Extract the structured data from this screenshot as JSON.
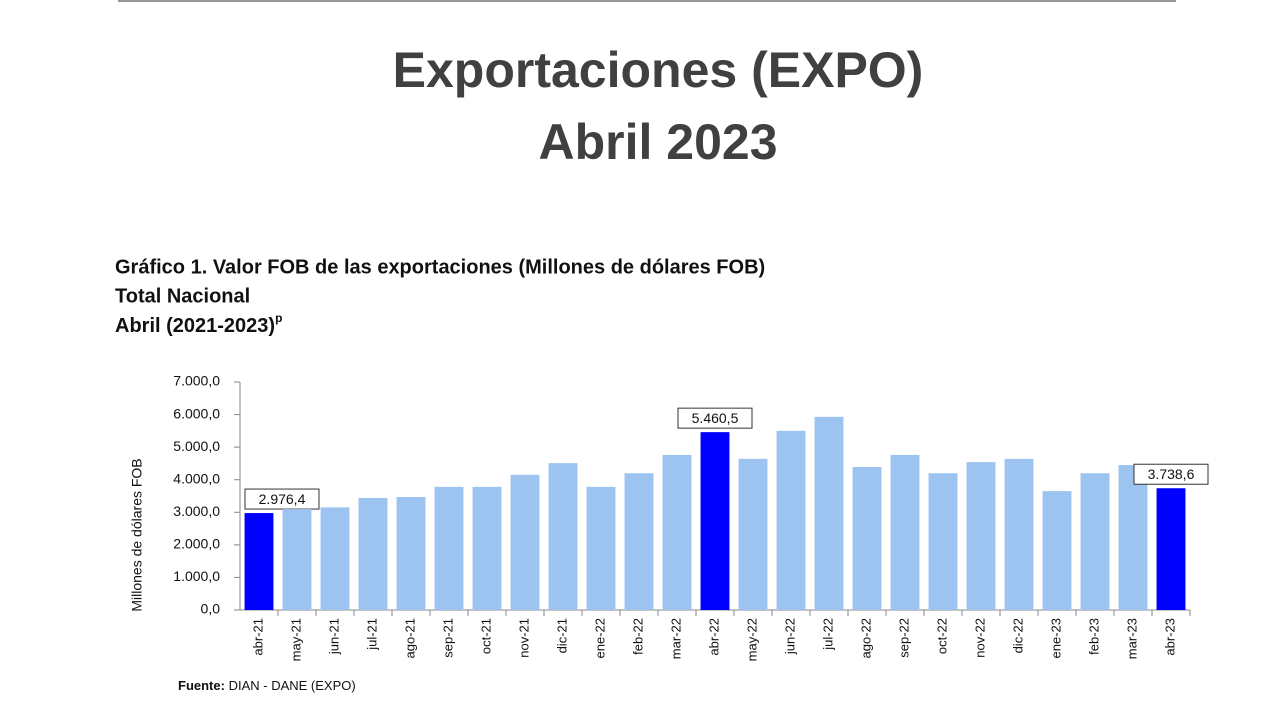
{
  "title": [
    "Exportaciones (EXPO)",
    "Abril 2023"
  ],
  "chart_data": {
    "type": "bar",
    "title": "Gráfico 1. Valor FOB de las exportaciones (Millones de dólares FOB)",
    "subtitle": [
      "Total Nacional",
      "Abril (2021-2023)"
    ],
    "subtitle_superscript": "p",
    "ylabel": "Millones de dólares FOB",
    "categories": [
      "abr-21",
      "may-21",
      "jun-21",
      "jul-21",
      "ago-21",
      "sep-21",
      "oct-21",
      "nov-21",
      "dic-21",
      "ene-22",
      "feb-22",
      "mar-22",
      "abr-22",
      "may-22",
      "jun-22",
      "jul-22",
      "ago-22",
      "sep-22",
      "oct-22",
      "nov-22",
      "dic-22",
      "ene-23",
      "feb-23",
      "mar-23",
      "abr-23"
    ],
    "values": [
      2976.4,
      3100,
      3150,
      3440,
      3470,
      3780,
      3780,
      4150,
      4510,
      3780,
      4200,
      4760,
      5460.5,
      4640,
      5500,
      5930,
      4390,
      4760,
      4200,
      4540,
      4640,
      3650,
      4200,
      4450,
      3738.6
    ],
    "value_labels": [
      "2.976,4",
      null,
      null,
      null,
      null,
      null,
      null,
      null,
      null,
      null,
      null,
      null,
      "5.460,5",
      null,
      null,
      null,
      null,
      null,
      null,
      null,
      null,
      null,
      null,
      null,
      "3.738,6"
    ],
    "colors": [
      "#0000ff",
      "#9dc3f0",
      "#9dc3f0",
      "#9dc3f0",
      "#9dc3f0",
      "#9dc3f0",
      "#9dc3f0",
      "#9dc3f0",
      "#9dc3f0",
      "#9dc3f0",
      "#9dc3f0",
      "#9dc3f0",
      "#0000ff",
      "#9dc3f0",
      "#9dc3f0",
      "#9dc3f0",
      "#9dc3f0",
      "#9dc3f0",
      "#9dc3f0",
      "#9dc3f0",
      "#9dc3f0",
      "#9dc3f0",
      "#9dc3f0",
      "#9dc3f0",
      "#0000ff"
    ],
    "ylim": [
      0,
      7000
    ],
    "yticks": [
      {
        "value": 0,
        "label": "0,0"
      },
      {
        "value": 1000,
        "label": "1.000,0"
      },
      {
        "value": 2000,
        "label": "2.000,0"
      },
      {
        "value": 3000,
        "label": "3.000,0"
      },
      {
        "value": 4000,
        "label": "4.000,0"
      },
      {
        "value": 5000,
        "label": "5.000,0"
      },
      {
        "value": 6000,
        "label": "6.000,0"
      },
      {
        "value": 7000,
        "label": "7.000,0"
      }
    ],
    "grid": false
  },
  "source": {
    "label": "Fuente:",
    "text": "DIAN - DANE (EXPO)"
  }
}
